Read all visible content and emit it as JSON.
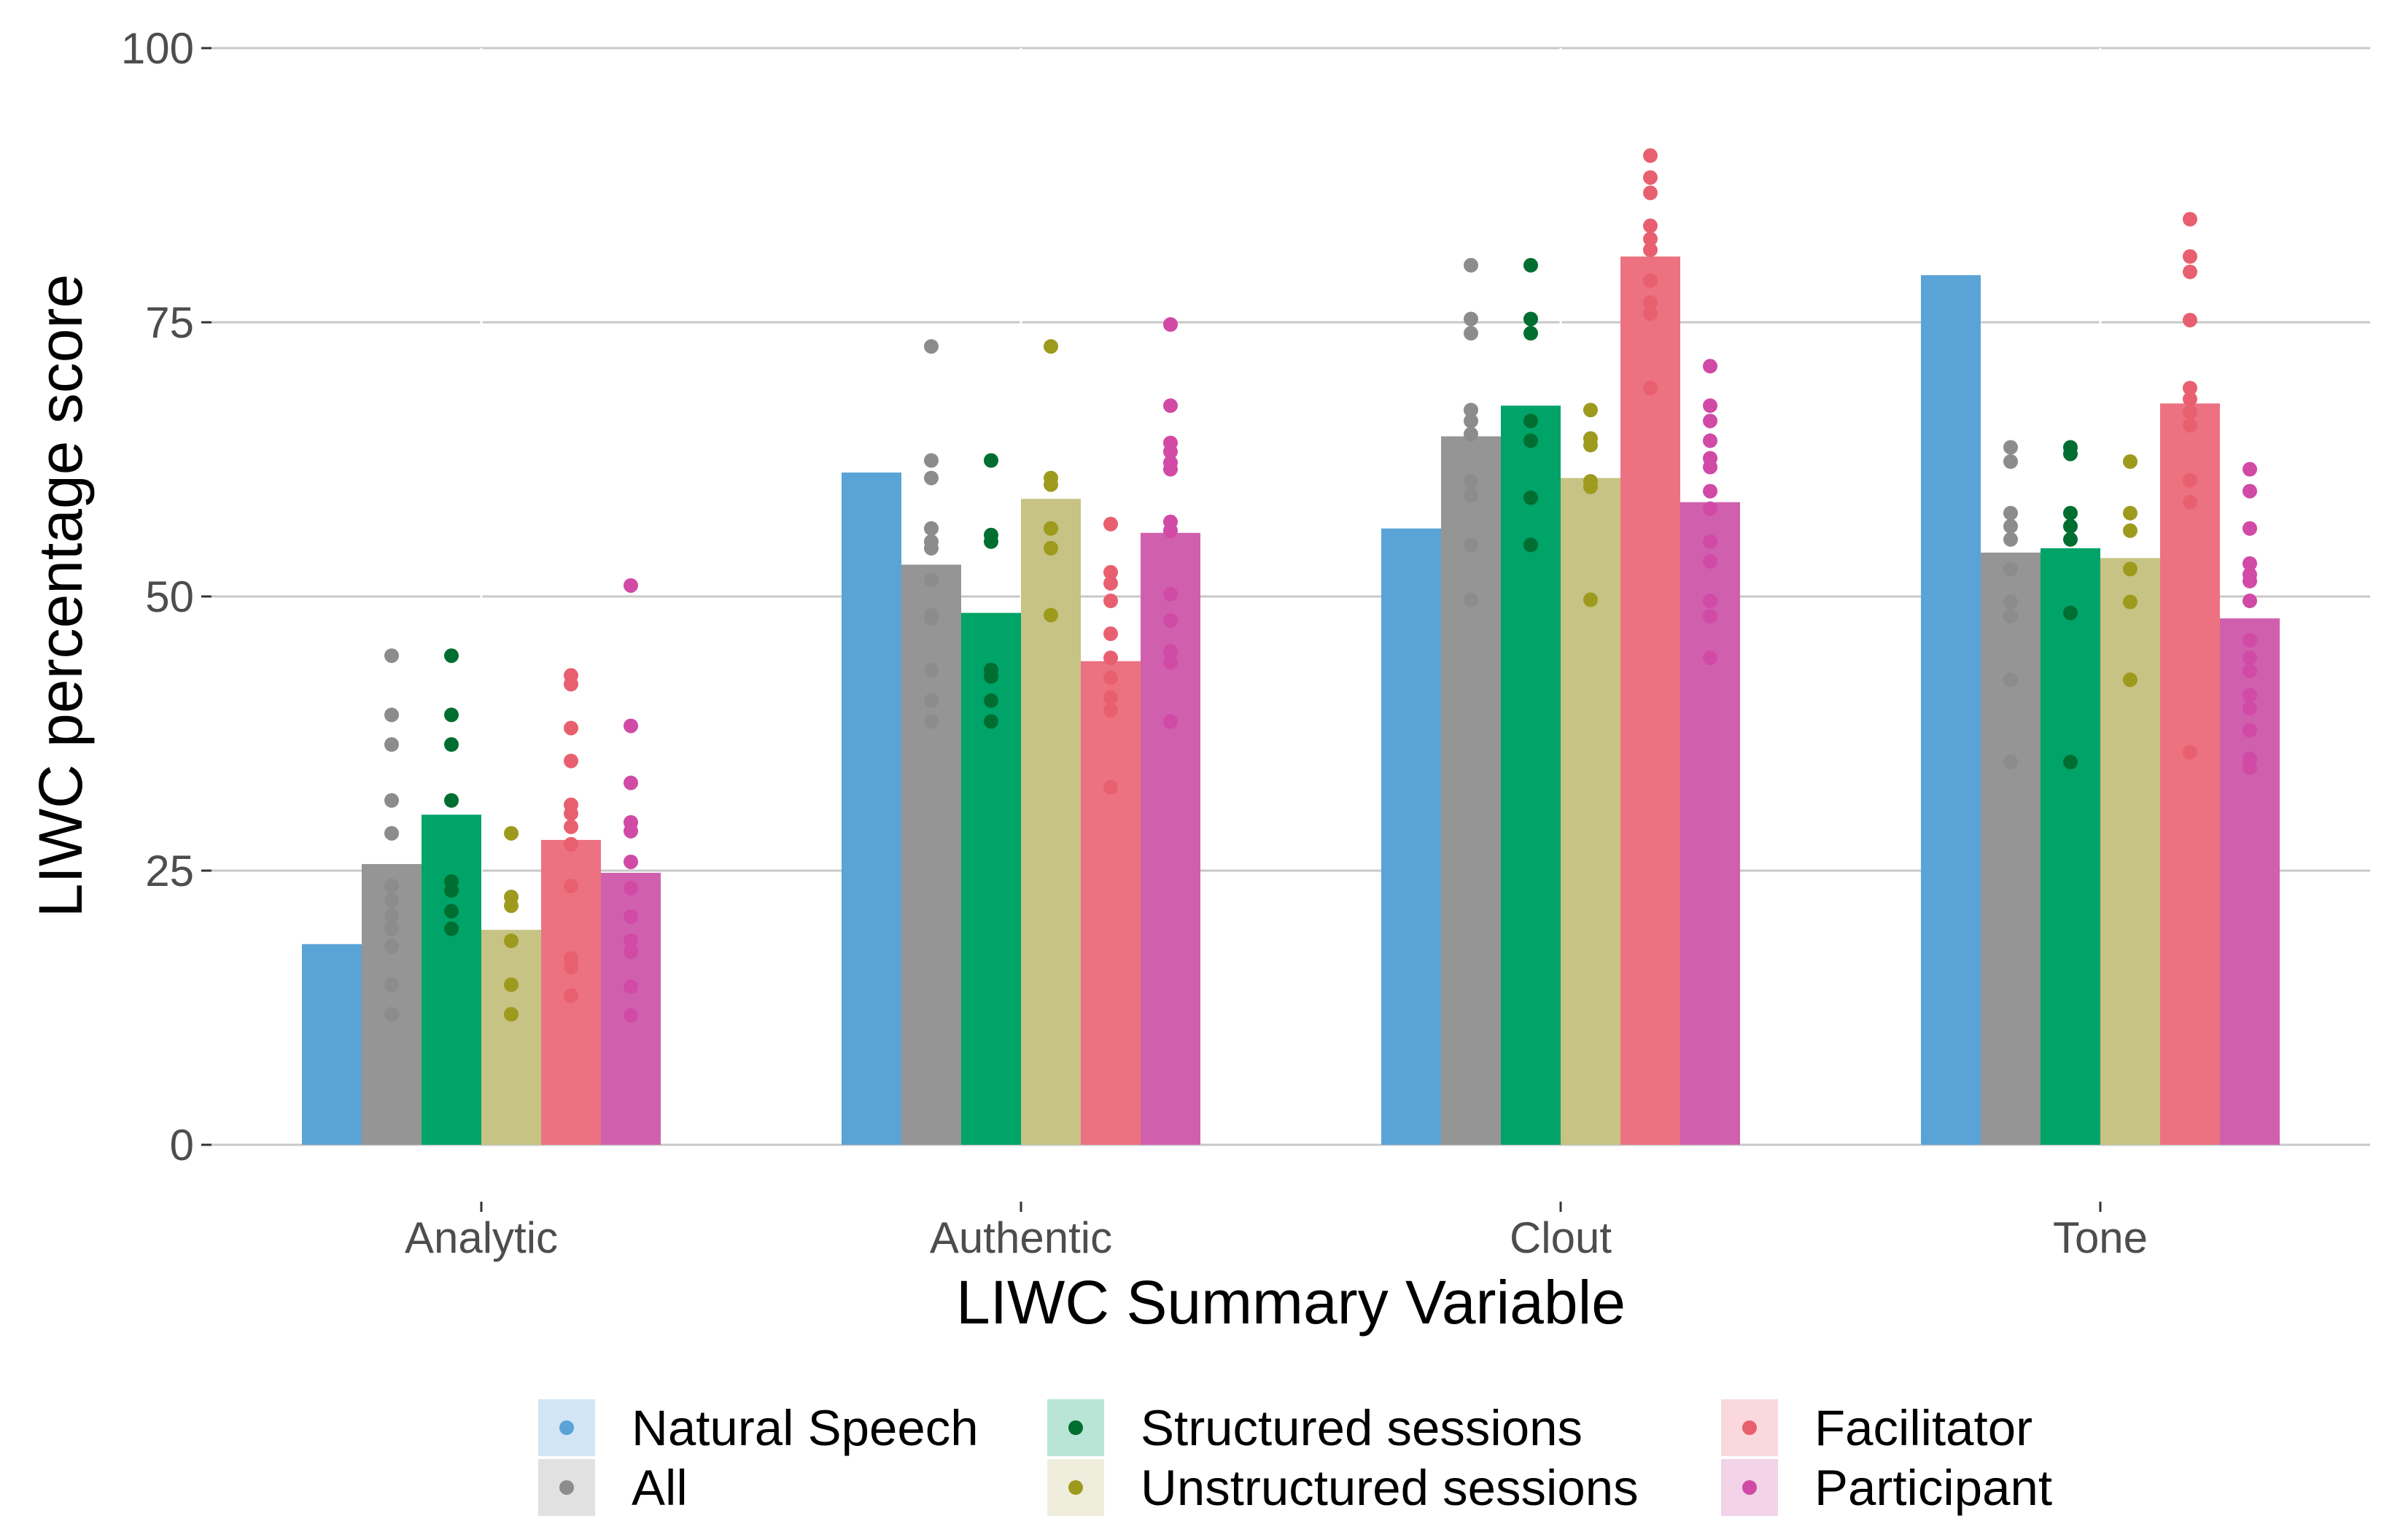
{
  "chart_data": {
    "type": "bar",
    "title": "",
    "xlabel": "LIWC Summary Variable",
    "ylabel": "LIWC percentage score",
    "ylim": [
      0,
      100
    ],
    "yticks": [
      0,
      25,
      50,
      75,
      100
    ],
    "grid": true,
    "categories": [
      "Analytic",
      "Authentic",
      "Clout",
      "Tone"
    ],
    "series": [
      {
        "name": "Natural Speech",
        "color": "#5aa3d6",
        "values": [
          18.3,
          61.3,
          56.2,
          79.3
        ]
      },
      {
        "name": "All",
        "color": "#959595",
        "values": [
          25.6,
          52.9,
          64.6,
          54.0
        ]
      },
      {
        "name": "Structured sessions",
        "color": "#00a368",
        "values": [
          30.1,
          48.5,
          67.4,
          54.4
        ]
      },
      {
        "name": "Unstructured sessions",
        "color": "#c6c384",
        "values": [
          19.6,
          58.9,
          60.8,
          53.5
        ]
      },
      {
        "name": "Facilitator",
        "color": "#ec7281",
        "values": [
          27.8,
          44.1,
          81.0,
          67.6
        ]
      },
      {
        "name": "Participant",
        "color": "#d060ad",
        "values": [
          24.8,
          55.8,
          58.6,
          48.0
        ]
      }
    ],
    "points": [
      {
        "name": "All",
        "color": "#8c8c8c",
        "values": [
          [
            44.6,
            39.2,
            36.5,
            31.4,
            28.4,
            23.6,
            22.3,
            20.9,
            19.7,
            18.1,
            14.6,
            11.9
          ],
          [
            72.8,
            62.4,
            60.8,
            56.2,
            55.0,
            54.4,
            51.5,
            48.3,
            48.0,
            43.3,
            40.5,
            38.6
          ],
          [
            80.2,
            75.3,
            74.0,
            67.0,
            66.0,
            64.8,
            60.5,
            59.2,
            54.7,
            49.7
          ],
          [
            63.6,
            62.3,
            57.6,
            56.4,
            55.2,
            52.5,
            49.5,
            48.2,
            42.4,
            34.9
          ]
        ]
      },
      {
        "name": "Structured sessions",
        "color": "#006e30",
        "values": [
          [
            44.6,
            39.2,
            36.5,
            31.4,
            24.0,
            23.2,
            21.3,
            19.7
          ],
          [
            62.4,
            55.6,
            55.0,
            43.3,
            42.7,
            40.5,
            38.6
          ],
          [
            80.2,
            75.3,
            74.0,
            66.0,
            64.2,
            59.0,
            54.7
          ],
          [
            63.6,
            63.0,
            57.6,
            56.4,
            55.2,
            48.5,
            34.9
          ]
        ]
      },
      {
        "name": "Unstructured sessions",
        "color": "#9e9a1d",
        "values": [
          [
            28.4,
            22.6,
            21.8,
            18.6,
            14.6,
            11.9
          ],
          [
            72.8,
            60.8,
            60.2,
            56.2,
            54.4,
            48.3
          ],
          [
            67.0,
            64.4,
            63.8,
            60.5,
            60.0,
            49.7
          ],
          [
            62.3,
            57.6,
            56.0,
            52.5,
            49.5,
            42.4
          ]
        ]
      },
      {
        "name": "Facilitator",
        "color": "#e8606f",
        "values": [
          [
            42.8,
            42.0,
            38.0,
            35.0,
            31.0,
            30.2,
            29.0,
            27.4,
            23.6,
            17.0,
            16.2,
            13.6
          ],
          [
            56.6,
            52.2,
            51.2,
            49.6,
            46.6,
            44.4,
            42.6,
            40.8,
            39.6,
            32.6
          ],
          [
            90.2,
            88.2,
            86.8,
            83.8,
            82.6,
            81.6,
            78.8,
            76.8,
            75.8,
            69.0
          ],
          [
            84.4,
            81.0,
            79.6,
            75.2,
            69.0,
            68.0,
            66.8,
            65.6,
            60.6,
            58.6,
            35.8
          ]
        ]
      },
      {
        "name": "Participant",
        "color": "#d04aa6",
        "values": [
          [
            51.0,
            38.2,
            33.0,
            29.4,
            28.6,
            25.8,
            23.4,
            20.8,
            18.6,
            17.6,
            14.4,
            11.8
          ],
          [
            74.8,
            67.4,
            64.0,
            63.2,
            62.2,
            61.6,
            56.8,
            56.0,
            50.2,
            47.8,
            45.0,
            44.0,
            38.6
          ],
          [
            71.0,
            67.4,
            66.0,
            64.2,
            62.6,
            61.8,
            59.6,
            58.0,
            55.0,
            53.2,
            49.6,
            48.2,
            44.4
          ],
          [
            61.6,
            59.6,
            56.2,
            53.0,
            52.0,
            51.4,
            49.6,
            46.0,
            44.4,
            43.2,
            41.0,
            39.8,
            37.8,
            35.2,
            34.4
          ]
        ]
      }
    ],
    "legend": {
      "position": "bottom",
      "items": [
        {
          "label": "Natural Speech",
          "color": "#5aa3d6"
        },
        {
          "label": "All",
          "color": "#8c8c8c"
        },
        {
          "label": "Structured sessions",
          "color": "#006e30"
        },
        {
          "label": "Unstructured sessions",
          "color": "#9e9a1d"
        },
        {
          "label": "Facilitator",
          "color": "#e8606f"
        },
        {
          "label": "Participant",
          "color": "#d04aa6"
        }
      ]
    }
  }
}
